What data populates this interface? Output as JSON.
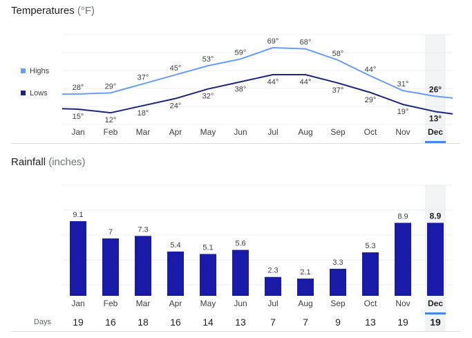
{
  "temperature": {
    "title": "Temperatures",
    "unit": "(°F)",
    "legend": [
      {
        "label": "Highs",
        "color": "#669df6"
      },
      {
        "label": "Lows",
        "color": "#1a237e"
      }
    ],
    "months": [
      "Jan",
      "Feb",
      "Mar",
      "Apr",
      "May",
      "Jun",
      "Jul",
      "Aug",
      "Sep",
      "Oct",
      "Nov",
      "Dec"
    ],
    "selected_index": 11,
    "highs": [
      28,
      29,
      37,
      45,
      53,
      59,
      69,
      68,
      58,
      44,
      31,
      26
    ],
    "lows": [
      15,
      12,
      18,
      24,
      32,
      38,
      44,
      44,
      37,
      29,
      19,
      13
    ],
    "degree_symbol": "°"
  },
  "rainfall": {
    "title": "Rainfall",
    "unit": "(inches)",
    "bar_color": "#1a1aa8",
    "months": [
      "Jan",
      "Feb",
      "Mar",
      "Apr",
      "May",
      "Jun",
      "Jul",
      "Aug",
      "Sep",
      "Oct",
      "Nov",
      "Dec"
    ],
    "selected_index": 11,
    "values": [
      9.1,
      7,
      7.3,
      5.4,
      5.1,
      5.6,
      2.3,
      2.1,
      3.3,
      5.3,
      8.9,
      8.9
    ],
    "days_label": "Days",
    "days": [
      19,
      16,
      18,
      16,
      14,
      13,
      7,
      7,
      9,
      13,
      19,
      19
    ]
  },
  "chart_data": [
    {
      "type": "line",
      "title": "Temperatures (°F)",
      "categories": [
        "Jan",
        "Feb",
        "Mar",
        "Apr",
        "May",
        "Jun",
        "Jul",
        "Aug",
        "Sep",
        "Oct",
        "Nov",
        "Dec"
      ],
      "series": [
        {
          "name": "Highs",
          "values": [
            28,
            29,
            37,
            45,
            53,
            59,
            69,
            68,
            58,
            44,
            31,
            26
          ]
        },
        {
          "name": "Lows",
          "values": [
            15,
            12,
            18,
            24,
            32,
            38,
            44,
            44,
            37,
            29,
            19,
            13
          ]
        }
      ],
      "legend": "left"
    },
    {
      "type": "bar",
      "title": "Rainfall (inches)",
      "categories": [
        "Jan",
        "Feb",
        "Mar",
        "Apr",
        "May",
        "Jun",
        "Jul",
        "Aug",
        "Sep",
        "Oct",
        "Nov",
        "Dec"
      ],
      "values": [
        9.1,
        7,
        7.3,
        5.4,
        5.1,
        5.6,
        2.3,
        2.1,
        3.3,
        5.3,
        8.9,
        8.9
      ],
      "secondary_row": {
        "label": "Days",
        "values": [
          19,
          16,
          18,
          16,
          14,
          13,
          7,
          7,
          9,
          13,
          19,
          19
        ]
      }
    }
  ]
}
